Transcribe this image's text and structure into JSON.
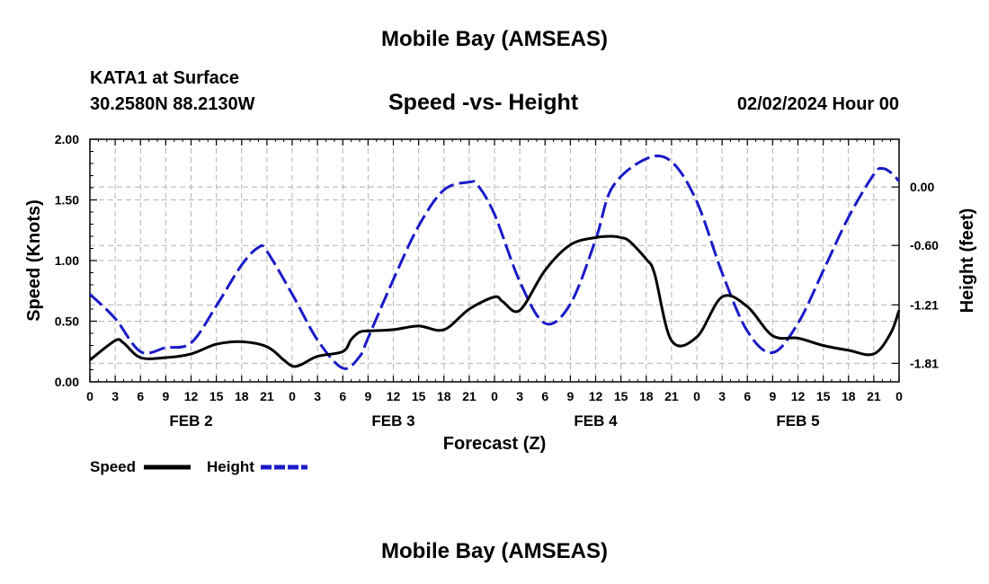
{
  "header": {
    "title": "Mobile Bay (AMSEAS)",
    "station": "KATA1 at Surface",
    "coords": "30.2580N  88.2130W",
    "chart_title": "Speed -vs- Height",
    "date": "02/02/2024 Hour 00"
  },
  "footer": {
    "title": "Mobile Bay (AMSEAS)"
  },
  "chart_data": {
    "type": "line",
    "title": "Speed -vs- Height",
    "xlabel": "Forecast (Z)",
    "ylabel": "Speed (Knots)",
    "y2label": "Height (feet)",
    "x_hours_min": 0,
    "x_hours_max": 96,
    "x_tick_labels": [
      "0",
      "3",
      "6",
      "9",
      "12",
      "15",
      "18",
      "21",
      "0",
      "3",
      "6",
      "9",
      "12",
      "15",
      "18",
      "21",
      "0",
      "3",
      "6",
      "9",
      "12",
      "15",
      "18",
      "21",
      "0",
      "3",
      "6",
      "9",
      "12",
      "15",
      "18",
      "21",
      "0"
    ],
    "day_labels": [
      "FEB 2",
      "FEB 3",
      "FEB 4",
      "FEB 5"
    ],
    "ylim": [
      0,
      2.0
    ],
    "y_ticks": [
      "0.00",
      "0.50",
      "1.00",
      "1.50",
      "2.00"
    ],
    "y2lim": [
      -2.0,
      0.49
    ],
    "y2_ticks": [
      "0.00",
      "-0.60",
      "-1.21",
      "-1.81"
    ],
    "grid": true,
    "legend_placement": "bottom-left",
    "colors": {
      "speed": "#000000",
      "height": "#1a1ac8"
    },
    "series": [
      {
        "name": "Speed",
        "axis": "left",
        "x": [
          0,
          3,
          4,
          6,
          9,
          12,
          15,
          18,
          21,
          23,
          24,
          25,
          27,
          30,
          31,
          32,
          33,
          36,
          39,
          42,
          45,
          48,
          49,
          51,
          54,
          57,
          60,
          62,
          63,
          64,
          66,
          67,
          69,
          72,
          75,
          78,
          81,
          84,
          87,
          90,
          93,
          95,
          96
        ],
        "values": [
          0.18,
          0.34,
          0.32,
          0.2,
          0.2,
          0.23,
          0.31,
          0.33,
          0.29,
          0.18,
          0.13,
          0.14,
          0.21,
          0.25,
          0.35,
          0.41,
          0.42,
          0.43,
          0.46,
          0.43,
          0.6,
          0.7,
          0.66,
          0.59,
          0.92,
          1.13,
          1.19,
          1.2,
          1.19,
          1.16,
          1.01,
          0.89,
          0.34,
          0.37,
          0.7,
          0.62,
          0.38,
          0.36,
          0.3,
          0.26,
          0.23,
          0.4,
          0.59
        ]
      },
      {
        "name": "Height",
        "axis": "right",
        "x": [
          0,
          3,
          6,
          9,
          12,
          15,
          18,
          20,
          21,
          24,
          27,
          30,
          32,
          33,
          36,
          39,
          42,
          45,
          46,
          48,
          51,
          54,
          57,
          60,
          62,
          66,
          69,
          72,
          75,
          78,
          81,
          84,
          87,
          90,
          93,
          94,
          95,
          96
        ],
        "values": [
          -1.1,
          -1.35,
          -1.69,
          -1.65,
          -1.6,
          -1.22,
          -0.8,
          -0.62,
          -0.66,
          -1.1,
          -1.57,
          -1.86,
          -1.74,
          -1.55,
          -0.95,
          -0.4,
          -0.03,
          0.05,
          0.02,
          -0.28,
          -0.97,
          -1.4,
          -1.2,
          -0.54,
          0.0,
          0.29,
          0.26,
          -0.15,
          -0.88,
          -1.48,
          -1.7,
          -1.4,
          -0.86,
          -0.31,
          0.13,
          0.19,
          0.15,
          0.06
        ]
      }
    ]
  }
}
